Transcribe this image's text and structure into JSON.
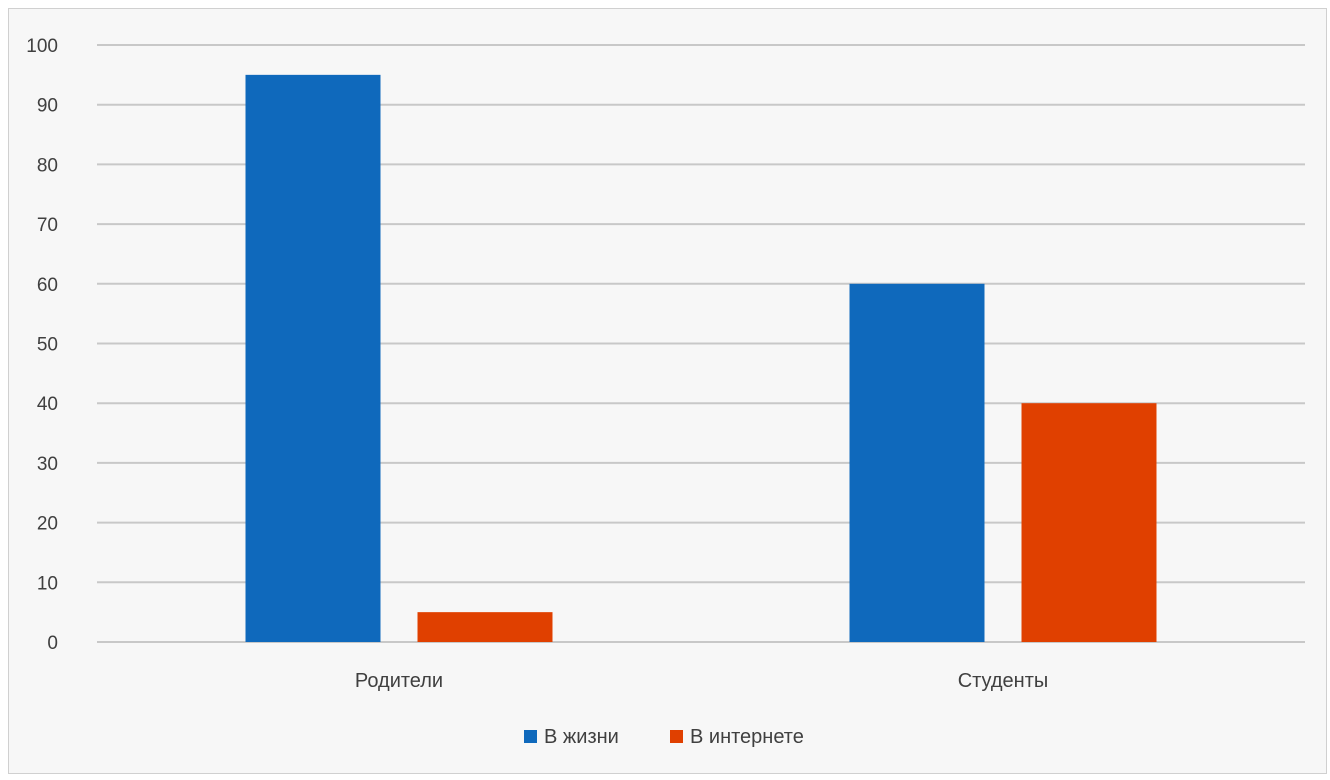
{
  "chart_data": {
    "type": "bar",
    "title": "",
    "xlabel": "",
    "ylabel": "",
    "categories": [
      "Родители",
      "Студенты"
    ],
    "series": [
      {
        "name": "В жизни",
        "values": [
          95,
          60
        ],
        "color": "#0F69BC"
      },
      {
        "name": "В интернете",
        "values": [
          5,
          40
        ],
        "color": "#E04000"
      }
    ],
    "ylim": [
      0,
      100
    ],
    "yticks": [
      0,
      10,
      20,
      30,
      40,
      50,
      60,
      70,
      80,
      90,
      100
    ],
    "grid": true,
    "legend_position": "bottom"
  }
}
